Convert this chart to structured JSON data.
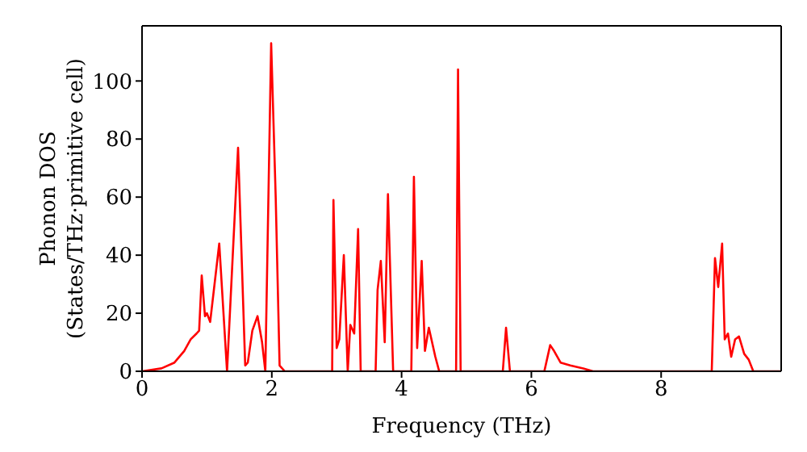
{
  "chart_data": {
    "type": "line",
    "xlabel": "Frequency (THz)",
    "ylabel": "Phonon DOS\n(States/THz·primitive cell)",
    "xlim": [
      0,
      9.85
    ],
    "ylim": [
      0,
      119
    ],
    "xticks": [
      0,
      2,
      4,
      6,
      8
    ],
    "yticks": [
      0,
      20,
      40,
      60,
      80,
      100
    ],
    "grid": false,
    "legend": false,
    "marker": "none",
    "line_style": "solid",
    "series": [
      {
        "color": "#ff0000",
        "x": [
          0,
          0.3,
          0.5,
          0.65,
          0.75,
          0.84,
          0.88,
          0.92,
          0.97,
          1.0,
          1.05,
          1.19,
          1.31,
          1.48,
          1.59,
          1.63,
          1.7,
          1.78,
          1.85,
          1.9,
          1.99,
          2.06,
          2.12,
          2.2,
          2.93,
          2.95,
          3.0,
          3.04,
          3.11,
          3.17,
          3.21,
          3.27,
          3.33,
          3.37,
          3.6,
          3.63,
          3.68,
          3.74,
          3.79,
          3.87,
          4.15,
          4.19,
          4.24,
          4.31,
          4.36,
          4.42,
          4.52,
          4.58,
          4.84,
          4.87,
          4.91,
          5.56,
          5.61,
          5.67,
          6.2,
          6.29,
          6.35,
          6.45,
          6.6,
          6.8,
          6.95,
          8.78,
          8.83,
          8.88,
          8.94,
          8.98,
          9.03,
          9.08,
          9.14,
          9.2,
          9.28,
          9.35,
          9.42,
          9.85
        ],
        "values": [
          0,
          1,
          3,
          7,
          11,
          13,
          14,
          33,
          19,
          20,
          17,
          44,
          0,
          77,
          2,
          3,
          14,
          19,
          10,
          0,
          113,
          60,
          2,
          0,
          0,
          59,
          8,
          11,
          40,
          0,
          16,
          13,
          49,
          0,
          0,
          28,
          38,
          10,
          61,
          0,
          0,
          67,
          8,
          38,
          7,
          15,
          5,
          0,
          0,
          104,
          0,
          0,
          15,
          0,
          0,
          9,
          7,
          3,
          2,
          1,
          0,
          0,
          39,
          29,
          44,
          11,
          13,
          5,
          11,
          12,
          6,
          4,
          0,
          0
        ]
      }
    ]
  }
}
